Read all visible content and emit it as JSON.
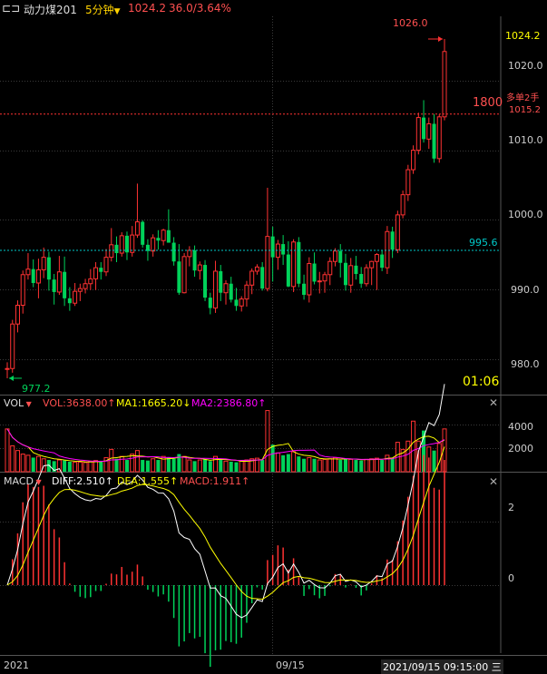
{
  "toolbar": {
    "symbol": "动力煤201",
    "period": "5分钟",
    "price": "1024.2",
    "change": "36.0/3.64%"
  },
  "main": {
    "y_ticks": [
      "1020.0",
      "1010.0",
      "1000.0",
      "990.0",
      "980.0"
    ],
    "last_price_label": "1024.2",
    "high_label": "1026.0",
    "low_label": "977.2",
    "ref_line_label": "995.6",
    "order_line_label": "1800",
    "position_label": "多单2手",
    "position_price": "1015.2",
    "countdown": "01:06"
  },
  "vol": {
    "name": "VOL",
    "vol_text": "VOL:3638.00↑",
    "ma1_text": "MA1:1665.20↓",
    "ma2_text": "MA2:2386.80↑",
    "ticks": [
      "4000",
      "2000"
    ]
  },
  "macd": {
    "name": "MACD",
    "diff_text": "DIFF:2.510↑",
    "dea_text": "DEA:1.555↑",
    "macd_text": "MACD:1.911↑",
    "ticks": [
      "2",
      "0"
    ]
  },
  "xaxis": {
    "left_label": "2021",
    "mid_label": "09/15",
    "cursor_label": "2021/09/15 09:15:00 三"
  },
  "colors": {
    "up": "#ff3232",
    "down": "#00d25a",
    "ref": "#00c8c8",
    "order": "#ff3232",
    "ma1": "#ffff00",
    "ma2": "#ff00ff",
    "diff": "#ffffff",
    "dea": "#ffff00"
  },
  "chart_data": {
    "type": "candlestick",
    "price_range": [
      975.5,
      1029
    ],
    "candles": [
      [
        978.6,
        979.5,
        977.2,
        978.6
      ],
      [
        978.6,
        985.6,
        978.0,
        985.0
      ],
      [
        985.0,
        988.4,
        983.8,
        987.7
      ],
      [
        987.7,
        992.7,
        986.5,
        992.1
      ],
      [
        992.1,
        995.2,
        991.4,
        992.9
      ],
      [
        992.9,
        994.3,
        990.3,
        990.9
      ],
      [
        990.9,
        994.4,
        988.7,
        992.8
      ],
      [
        992.8,
        996.0,
        991.6,
        994.6
      ],
      [
        994.6,
        995.4,
        989.8,
        991.4
      ],
      [
        991.4,
        992.2,
        987.8,
        989.6
      ],
      [
        989.6,
        994.8,
        989.2,
        992.5
      ],
      [
        992.5,
        994.7,
        987.6,
        988.7
      ],
      [
        988.7,
        990.3,
        986.9,
        988.0
      ],
      [
        988.0,
        990.9,
        987.6,
        989.7
      ],
      [
        989.7,
        990.8,
        988.3,
        990.1
      ],
      [
        990.1,
        991.5,
        989.4,
        990.8
      ],
      [
        990.8,
        992.9,
        989.9,
        991.5
      ],
      [
        991.5,
        993.9,
        989.9,
        993.1
      ],
      [
        993.1,
        993.9,
        991.4,
        992.5
      ],
      [
        992.5,
        995.8,
        991.9,
        994.6
      ],
      [
        994.6,
        998.8,
        994.0,
        996.4
      ],
      [
        996.4,
        997.6,
        993.9,
        995.2
      ],
      [
        995.2,
        998.2,
        994.7,
        997.7
      ],
      [
        997.7,
        998.3,
        994.2,
        995.3
      ],
      [
        995.3,
        999.1,
        994.7,
        997.8
      ],
      [
        997.8,
        1005.2,
        997.4,
        999.7
      ],
      [
        999.7,
        999.9,
        996.0,
        996.4
      ],
      [
        996.4,
        997.2,
        994.1,
        995.5
      ],
      [
        995.5,
        997.9,
        994.7,
        997.4
      ],
      [
        997.4,
        998.5,
        995.7,
        997.0
      ],
      [
        997.0,
        998.7,
        996.3,
        998.5
      ],
      [
        998.5,
        1001.5,
        996.7,
        996.7
      ],
      [
        996.7,
        997.5,
        993.4,
        994.0
      ],
      [
        994.0,
        996.5,
        989.2,
        989.5
      ],
      [
        989.5,
        995.2,
        989.4,
        994.7
      ],
      [
        994.7,
        996.2,
        993.3,
        995.6
      ],
      [
        995.6,
        996.3,
        991.8,
        992.7
      ],
      [
        992.7,
        994.0,
        991.4,
        993.5
      ],
      [
        993.5,
        994.2,
        988.3,
        988.8
      ],
      [
        988.8,
        989.5,
        986.4,
        987.3
      ],
      [
        987.3,
        994.1,
        986.6,
        992.6
      ],
      [
        992.6,
        993.5,
        988.3,
        989.5
      ],
      [
        989.5,
        991.3,
        987.8,
        990.8
      ],
      [
        990.8,
        991.8,
        988.1,
        988.5
      ],
      [
        988.5,
        990.2,
        986.9,
        987.6
      ],
      [
        987.6,
        989.0,
        986.8,
        988.6
      ],
      [
        988.6,
        991.2,
        987.5,
        990.6
      ],
      [
        990.6,
        993.0,
        989.3,
        992.6
      ],
      [
        992.6,
        993.6,
        992.1,
        993.2
      ],
      [
        993.2,
        993.9,
        989.8,
        990.1
      ],
      [
        990.1,
        1004.6,
        989.7,
        997.6
      ],
      [
        997.6,
        999.0,
        991.1,
        994.6
      ],
      [
        994.6,
        997.1,
        992.8,
        996.5
      ],
      [
        996.5,
        997.8,
        993.5,
        995.0
      ],
      [
        995.0,
        996.9,
        990.3,
        990.4
      ],
      [
        990.4,
        997.2,
        989.6,
        996.8
      ],
      [
        996.8,
        997.5,
        990.3,
        990.8
      ],
      [
        990.8,
        992.1,
        988.5,
        989.2
      ],
      [
        989.2,
        994.6,
        988.1,
        993.7
      ],
      [
        993.7,
        995.3,
        990.7,
        991.1
      ],
      [
        991.1,
        992.5,
        989.4,
        991.2
      ],
      [
        991.2,
        992.5,
        989.5,
        992.1
      ],
      [
        992.1,
        994.6,
        990.6,
        994.0
      ],
      [
        994.0,
        995.9,
        993.3,
        995.5
      ],
      [
        995.5,
        996.5,
        991.7,
        993.8
      ],
      [
        993.8,
        995.1,
        989.8,
        990.6
      ],
      [
        990.6,
        994.5,
        989.5,
        993.4
      ],
      [
        993.4,
        994.8,
        991.4,
        992.2
      ],
      [
        992.2,
        993.2,
        990.2,
        990.8
      ],
      [
        990.8,
        993.6,
        990.4,
        993.1
      ],
      [
        993.1,
        994.1,
        990.6,
        994.0
      ],
      [
        994.0,
        995.2,
        989.9,
        995.0
      ],
      [
        995.0,
        995.6,
        992.6,
        993.1
      ],
      [
        993.1,
        999.1,
        992.2,
        998.3
      ],
      [
        998.3,
        999.0,
        994.5,
        995.7
      ],
      [
        995.7,
        1001.3,
        995.2,
        1000.7
      ],
      [
        1000.7,
        1004.2,
        1000.2,
        1003.6
      ],
      [
        1003.6,
        1007.9,
        1002.7,
        1007.2
      ],
      [
        1007.2,
        1010.7,
        1006.6,
        1010.0
      ],
      [
        1010.0,
        1015.4,
        1009.4,
        1014.7
      ],
      [
        1014.7,
        1017.2,
        1011.1,
        1011.6
      ],
      [
        1011.6,
        1014.7,
        1010.2,
        1013.8
      ],
      [
        1013.8,
        1015.2,
        1008.2,
        1008.8
      ],
      [
        1008.8,
        1015.2,
        1008.2,
        1014.8
      ],
      [
        1014.8,
        1026.0,
        1014.3,
        1024.2
      ]
    ],
    "volume": [
      3638,
      2200,
      1800,
      1500,
      1400,
      1200,
      1300,
      1100,
      1000,
      900,
      1000,
      950,
      850,
      800,
      820,
      780,
      900,
      950,
      850,
      1200,
      1900,
      1100,
      1300,
      1000,
      1500,
      1800,
      1000,
      950,
      1100,
      1000,
      1300,
      1200,
      1100,
      1500,
      1300,
      1000,
      900,
      1000,
      1050,
      900,
      1300,
      1000,
      900,
      850,
      800,
      900,
      1000,
      1100,
      1150,
      1000,
      5200,
      2300,
      1600,
      1400,
      1500,
      1700,
      1300,
      1100,
      1200,
      1100,
      1000,
      1050,
      1100,
      1200,
      1000,
      1100,
      1050,
      1000,
      950,
      1050,
      1100,
      1150,
      1000,
      1400,
      1200,
      2500,
      1900,
      2600,
      4300,
      2600,
      3500,
      2100,
      1800,
      2400,
      3638
    ],
    "ma_lines": {
      "MA1": "1665.20",
      "MA2": "2386.80"
    },
    "macd_range": [
      -2.2,
      3.0
    ],
    "macd_values": {
      "DIFF": 2.51,
      "DEA": 1.555,
      "MACD": 1.911
    }
  }
}
